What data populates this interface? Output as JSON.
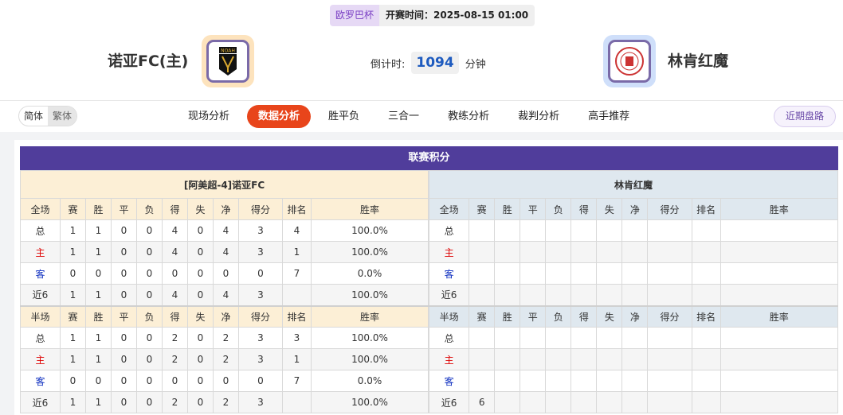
{
  "match": {
    "league": "欧罗巴杯",
    "time_label": "开赛时间：2025-08-15 01:00",
    "home": "诺亚FC(主)",
    "away": "林肯红魔",
    "home_logo_text": "NOAH",
    "countdown_label": "倒计时:",
    "countdown_value": "1094",
    "countdown_unit": "分钟"
  },
  "nav": {
    "lang": [
      "简体",
      "繁体"
    ],
    "tabs": [
      "现场分析",
      "数据分析",
      "胜平负",
      "三合一",
      "教练分析",
      "裁判分析",
      "高手推荐"
    ],
    "active_tab": 1,
    "recent": "近期盘路"
  },
  "standings": {
    "title": "联赛积分",
    "columns_full": [
      "全场",
      "赛",
      "胜",
      "平",
      "负",
      "得",
      "失",
      "净",
      "得分",
      "排名",
      "胜率"
    ],
    "columns_half": [
      "半场",
      "赛",
      "胜",
      "平",
      "负",
      "得",
      "失",
      "净",
      "得分",
      "排名",
      "胜率"
    ],
    "home": {
      "name": "[阿美超-4]诺亚FC",
      "full": [
        [
          "总",
          "1",
          "1",
          "0",
          "0",
          "4",
          "0",
          "4",
          "3",
          "4",
          "100.0%"
        ],
        [
          "主",
          "1",
          "1",
          "0",
          "0",
          "4",
          "0",
          "4",
          "3",
          "1",
          "100.0%"
        ],
        [
          "客",
          "0",
          "0",
          "0",
          "0",
          "0",
          "0",
          "0",
          "0",
          "7",
          "0.0%"
        ],
        [
          "近6",
          "1",
          "1",
          "0",
          "0",
          "4",
          "0",
          "4",
          "3",
          "",
          "100.0%"
        ]
      ],
      "half": [
        [
          "总",
          "1",
          "1",
          "0",
          "0",
          "2",
          "0",
          "2",
          "3",
          "3",
          "100.0%"
        ],
        [
          "主",
          "1",
          "1",
          "0",
          "0",
          "2",
          "0",
          "2",
          "3",
          "1",
          "100.0%"
        ],
        [
          "客",
          "0",
          "0",
          "0",
          "0",
          "0",
          "0",
          "0",
          "0",
          "7",
          "0.0%"
        ],
        [
          "近6",
          "1",
          "1",
          "0",
          "0",
          "2",
          "0",
          "2",
          "3",
          "",
          "100.0%"
        ]
      ]
    },
    "away": {
      "name": "林肯红魔",
      "full": [
        [
          "总",
          "",
          "",
          "",
          "",
          "",
          "",
          "",
          "",
          "",
          ""
        ],
        [
          "主",
          "",
          "",
          "",
          "",
          "",
          "",
          "",
          "",
          "",
          ""
        ],
        [
          "客",
          "",
          "",
          "",
          "",
          "",
          "",
          "",
          "",
          "",
          ""
        ],
        [
          "近6",
          "",
          "",
          "",
          "",
          "",
          "",
          "",
          "",
          "",
          ""
        ]
      ],
      "half": [
        [
          "总",
          "",
          "",
          "",
          "",
          "",
          "",
          "",
          "",
          "",
          ""
        ],
        [
          "主",
          "",
          "",
          "",
          "",
          "",
          "",
          "",
          "",
          "",
          ""
        ],
        [
          "客",
          "",
          "",
          "",
          "",
          "",
          "",
          "",
          "",
          "",
          ""
        ],
        [
          "近6",
          "6",
          "",
          "",
          "",
          "",
          "",
          "",
          "",
          "",
          ""
        ]
      ]
    }
  }
}
